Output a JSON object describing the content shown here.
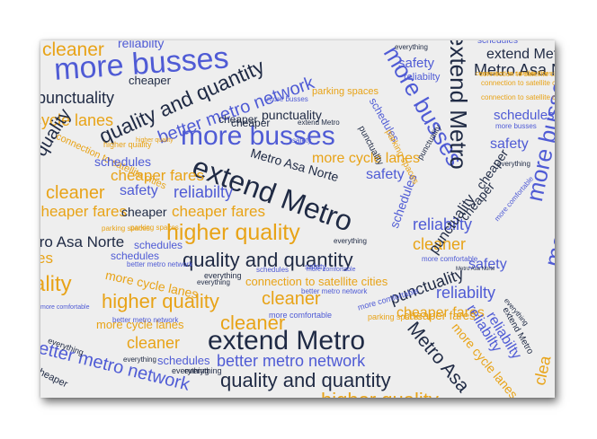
{
  "palette": {
    "dark": "#1f2a44",
    "blue": "#4f5bd5",
    "orange": "#e8a317",
    "background": "#eeeeee"
  },
  "words": [
    {
      "text": "cleaner",
      "color": "orange"
    },
    {
      "text": "reliabilty",
      "color": "blue"
    },
    {
      "text": "more busses",
      "color": "blue"
    },
    {
      "text": "quality and quantity",
      "color": "dark"
    },
    {
      "text": "cheaper",
      "color": "dark"
    },
    {
      "text": "better metro network",
      "color": "blue"
    },
    {
      "text": "punctuality",
      "color": "dark"
    },
    {
      "text": "parking spaces",
      "color": "orange"
    },
    {
      "text": "everything",
      "color": "dark"
    },
    {
      "text": "safety",
      "color": "blue"
    },
    {
      "text": "reliabilty",
      "color": "blue"
    },
    {
      "text": "more busses",
      "color": "blue"
    },
    {
      "text": "extend Metro",
      "color": "dark"
    },
    {
      "text": "schedules",
      "color": "blue"
    },
    {
      "text": "extend Metro",
      "color": "dark"
    },
    {
      "text": "Metro Asa Norte",
      "color": "dark"
    },
    {
      "text": "connection to satellite cities",
      "color": "orange"
    },
    {
      "text": "cycle lanes",
      "color": "orange"
    },
    {
      "text": "cheaper",
      "color": "dark"
    },
    {
      "text": "punctuality",
      "color": "dark"
    },
    {
      "text": "more busses",
      "color": "blue"
    },
    {
      "text": "extend Metro",
      "color": "dark"
    },
    {
      "text": "schedules",
      "color": "blue"
    },
    {
      "text": "more busses",
      "color": "blue"
    },
    {
      "text": "quality",
      "color": "dark"
    },
    {
      "text": "connection to satellite cities",
      "color": "orange"
    },
    {
      "text": "higher quality",
      "color": "orange"
    },
    {
      "text": "safety",
      "color": "blue"
    },
    {
      "text": "extend Metro",
      "color": "dark"
    },
    {
      "text": "schedules",
      "color": "blue"
    },
    {
      "text": "Metro Asa Norte",
      "color": "dark"
    },
    {
      "text": "more cycle lanes",
      "color": "orange"
    },
    {
      "text": "cheaper fares",
      "color": "orange"
    },
    {
      "text": "safety",
      "color": "blue"
    },
    {
      "text": "cleaner",
      "color": "orange"
    },
    {
      "text": "safety",
      "color": "blue"
    },
    {
      "text": "reliabilty",
      "color": "blue"
    },
    {
      "text": "cheaper fares",
      "color": "orange"
    },
    {
      "text": "cheaper",
      "color": "dark"
    },
    {
      "text": "cheaper fares",
      "color": "orange"
    },
    {
      "text": "higher quality",
      "color": "orange"
    },
    {
      "text": "reliabilty",
      "color": "blue"
    },
    {
      "text": "tro Asa Norte",
      "color": "dark"
    },
    {
      "text": "everything",
      "color": "dark"
    },
    {
      "text": "cleaner",
      "color": "orange"
    },
    {
      "text": "quality and quantity",
      "color": "dark"
    },
    {
      "text": "es",
      "color": "orange"
    },
    {
      "text": "schedules",
      "color": "blue"
    },
    {
      "text": "safety",
      "color": "blue"
    },
    {
      "text": "punctuality",
      "color": "dark"
    },
    {
      "text": "more cycle lanes",
      "color": "orange"
    },
    {
      "text": "ality",
      "color": "orange"
    },
    {
      "text": "higher quality",
      "color": "orange"
    },
    {
      "text": "connection to satellite cities",
      "color": "orange"
    },
    {
      "text": "cleaner",
      "color": "orange"
    },
    {
      "text": "reliabilty",
      "color": "blue"
    },
    {
      "text": "more comfortable",
      "color": "blue"
    },
    {
      "text": "more cycle lanes",
      "color": "orange"
    },
    {
      "text": "cheaper fares",
      "color": "orange"
    },
    {
      "text": "more comfortable",
      "color": "blue"
    },
    {
      "text": "extend Metro",
      "color": "dark"
    },
    {
      "text": "Metro Asa",
      "color": "dark"
    },
    {
      "text": "more cycle lanes",
      "color": "orange"
    },
    {
      "text": "reliabilty",
      "color": "blue"
    },
    {
      "text": "cleaner",
      "color": "orange"
    },
    {
      "text": "better metro network",
      "color": "blue"
    },
    {
      "text": "schedules",
      "color": "blue"
    },
    {
      "text": "better metro network",
      "color": "blue"
    },
    {
      "text": "quality and quantity",
      "color": "dark"
    },
    {
      "text": "cheaper",
      "color": "dark"
    },
    {
      "text": "more busses",
      "color": "blue"
    },
    {
      "text": "clea",
      "color": "orange"
    },
    {
      "text": "higher quality",
      "color": "orange"
    },
    {
      "text": "punctuality",
      "color": "dark"
    },
    {
      "text": "more comfortable",
      "color": "blue"
    },
    {
      "text": "everything",
      "color": "dark"
    },
    {
      "text": "everything",
      "color": "dark"
    },
    {
      "text": "cheaper",
      "color": "dark"
    },
    {
      "text": "parking spaces",
      "color": "orange"
    },
    {
      "text": "schedules",
      "color": "blue"
    },
    {
      "text": "cheaper",
      "color": "dark"
    },
    {
      "text": "everything",
      "color": "dark"
    },
    {
      "text": "safety",
      "color": "blue"
    },
    {
      "text": "everything",
      "color": "dark"
    },
    {
      "text": "connection to satellite cities",
      "color": "orange"
    },
    {
      "text": "more busses",
      "color": "blue"
    },
    {
      "text": "connection to satellite cities",
      "color": "orange"
    },
    {
      "text": "schedules",
      "color": "blue"
    },
    {
      "text": "more busses",
      "color": "blue"
    },
    {
      "text": "schedules",
      "color": "blue"
    },
    {
      "text": "cheaper",
      "color": "dark"
    },
    {
      "text": "more comfortable",
      "color": "blue"
    },
    {
      "text": "schedules",
      "color": "blue"
    },
    {
      "text": "more comfortable",
      "color": "blue"
    },
    {
      "text": "parking spaces",
      "color": "orange"
    },
    {
      "text": "everything",
      "color": "dark"
    },
    {
      "text": "extend Metro",
      "color": "dark"
    },
    {
      "text": "reliabilty",
      "color": "blue"
    },
    {
      "text": "everything",
      "color": "dark"
    },
    {
      "text": "parking spaces",
      "color": "orange"
    },
    {
      "text": "higher quality",
      "color": "orange"
    },
    {
      "text": "punctuality",
      "color": "dark"
    },
    {
      "text": "cheaper fares",
      "color": "orange"
    },
    {
      "text": "better metro network",
      "color": "blue"
    },
    {
      "text": "better metro network",
      "color": "blue"
    },
    {
      "text": "safety",
      "color": "blue"
    },
    {
      "text": "connection to satellite cities",
      "color": "orange"
    },
    {
      "text": "better metro network",
      "color": "blue"
    },
    {
      "text": "more comfortable",
      "color": "blue"
    },
    {
      "text": "Metro Asa Norte",
      "color": "dark"
    },
    {
      "text": "everything",
      "color": "dark"
    },
    {
      "text": "punctuality",
      "color": "dark"
    },
    {
      "text": "parking spaces",
      "color": "orange"
    },
    {
      "text": "everything",
      "color": "dark"
    },
    {
      "text": "cleaner",
      "color": "orange"
    }
  ]
}
